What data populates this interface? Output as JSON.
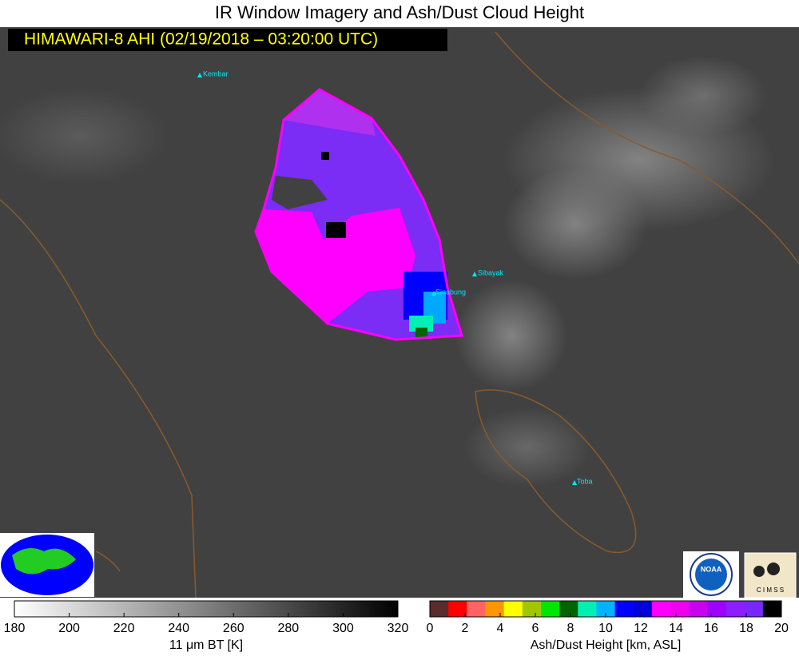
{
  "header": {
    "title": "IR Window Imagery and Ash/Dust Cloud Height",
    "subtitle": "HIMAWARI-8 AHI (02/19/2018 – 03:20:00 UTC)"
  },
  "map": {
    "volcanoes": [
      "Kembar",
      "Sibayak",
      "Sinabung",
      "Toba"
    ]
  },
  "logos": {
    "noaa": "NOAA",
    "cimss": "C I M S S"
  },
  "colorbars": [
    {
      "label": "11 μm BT [K]",
      "lim": [
        180,
        320
      ],
      "ticks": [
        180,
        200,
        220,
        240,
        260,
        280,
        300,
        320
      ],
      "gradient": true,
      "colors": [
        "#ffffff",
        "#000000"
      ]
    },
    {
      "label": "Ash/Dust Height [km, ASL]",
      "lim": [
        0,
        20
      ],
      "ticks": [
        0,
        2,
        4,
        6,
        8,
        10,
        12,
        14,
        16,
        18,
        20
      ],
      "gradient": false,
      "colors": [
        "#5a2c2c",
        "#ff0000",
        "#ff6464",
        "#ff9600",
        "#ffff00",
        "#a0c800",
        "#00e600",
        "#006400",
        "#00f0b4",
        "#00b4ff",
        "#0000ff",
        "#0000dc",
        "#ff00ff",
        "#f000f0",
        "#c800f0",
        "#a000ff",
        "#8c1eff",
        "#7828ff",
        "#000000"
      ]
    }
  ]
}
